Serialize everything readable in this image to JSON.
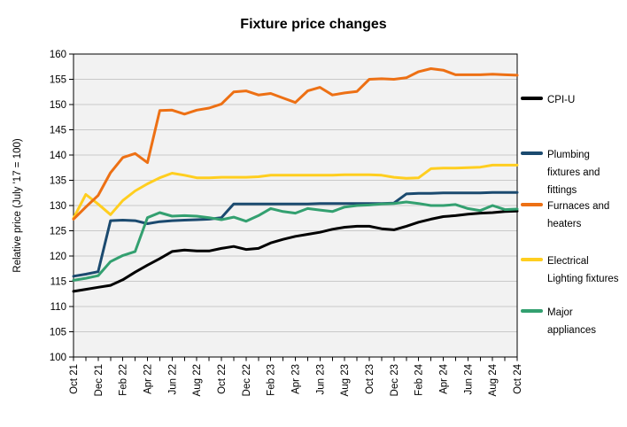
{
  "chart_data": {
    "type": "line",
    "title": "Fixture price changes",
    "ylabel": "Relative price (July '17 = 100)",
    "xlabel": "",
    "ylim": [
      100,
      160
    ],
    "y_ticks": [
      100,
      105,
      110,
      115,
      120,
      125,
      130,
      135,
      140,
      145,
      150,
      155,
      160
    ],
    "x_label_every": 2,
    "grid": true,
    "legend_position": "right",
    "plot_bg": "#F2F2F2",
    "grid_color": "#C9C9C9",
    "axis_color": "#000000",
    "months": [
      "Oct 21",
      "Nov 21",
      "Dec 21",
      "Jan 22",
      "Feb 22",
      "Mar 22",
      "Apr 22",
      "May 22",
      "Jun 22",
      "Jul 22",
      "Aug 22",
      "Sep 22",
      "Oct 22",
      "Nov 22",
      "Dec 22",
      "Jan 23",
      "Feb 23",
      "Mar 23",
      "Apr 23",
      "May 23",
      "Jun 23",
      "Jul 23",
      "Aug 23",
      "Sep 23",
      "Oct 23",
      "Nov 23",
      "Dec 23",
      "Jan 24",
      "Feb 24",
      "Mar 24",
      "Apr 24",
      "May 24",
      "Jun 24",
      "Jul 24",
      "Aug 24",
      "Sep 24",
      "Oct 24"
    ],
    "series": [
      {
        "name": "CPI-U",
        "color": "#000000",
        "values": [
          113.0,
          113.4,
          113.8,
          114.2,
          115.3,
          116.8,
          118.2,
          119.5,
          120.9,
          121.2,
          121.0,
          121.0,
          121.5,
          121.9,
          121.3,
          121.5,
          122.6,
          123.3,
          123.9,
          124.3,
          124.7,
          125.3,
          125.7,
          125.9,
          125.9,
          125.4,
          125.2,
          125.9,
          126.7,
          127.3,
          127.8,
          128.0,
          128.3,
          128.5,
          128.6,
          128.8,
          128.9
        ]
      },
      {
        "name": "Plumbing fixtures and fittings",
        "color": "#1B4A6F",
        "values": [
          116.0,
          116.4,
          116.9,
          127.0,
          127.1,
          127.0,
          126.4,
          126.8,
          127.0,
          127.1,
          127.2,
          127.3,
          127.6,
          130.3,
          130.3,
          130.3,
          130.3,
          130.3,
          130.3,
          130.3,
          130.4,
          130.4,
          130.4,
          130.4,
          130.4,
          130.4,
          130.5,
          132.3,
          132.4,
          132.4,
          132.5,
          132.5,
          132.5,
          132.5,
          132.6,
          132.6,
          132.6
        ]
      },
      {
        "name": "Furnaces and heaters",
        "color": "#ED7014",
        "values": [
          127.3,
          129.7,
          132.0,
          136.5,
          139.5,
          140.3,
          138.5,
          148.8,
          148.9,
          148.1,
          148.9,
          149.3,
          150.1,
          152.5,
          152.7,
          151.9,
          152.2,
          151.3,
          150.4,
          152.7,
          153.4,
          151.9,
          152.3,
          152.6,
          155.0,
          155.1,
          155.0,
          155.3,
          156.5,
          157.1,
          156.8,
          155.9,
          155.9,
          155.9,
          156.0,
          155.9,
          155.8
        ]
      },
      {
        "name": "Electrical Lighting fixtures",
        "color": "#FFCE1F",
        "values": [
          127.5,
          132.2,
          130.3,
          128.2,
          131.0,
          132.9,
          134.3,
          135.5,
          136.4,
          136.0,
          135.5,
          135.5,
          135.6,
          135.6,
          135.6,
          135.7,
          136.0,
          136.0,
          136.0,
          136.0,
          136.0,
          136.0,
          136.1,
          136.1,
          136.1,
          136.0,
          135.6,
          135.4,
          135.5,
          137.3,
          137.4,
          137.4,
          137.5,
          137.6,
          138.0,
          138.0,
          138.0
        ]
      },
      {
        "name": "Major appliances",
        "color": "#33A070",
        "values": [
          115.2,
          115.6,
          116.1,
          118.9,
          120.1,
          120.9,
          127.6,
          128.6,
          127.9,
          128.0,
          127.9,
          127.6,
          127.2,
          127.7,
          126.9,
          128.0,
          129.4,
          128.8,
          128.5,
          129.4,
          129.1,
          128.8,
          129.7,
          130.0,
          130.1,
          130.3,
          130.4,
          130.7,
          130.4,
          130.0,
          130.0,
          130.2,
          129.4,
          129.0,
          130.0,
          129.2,
          129.3
        ]
      }
    ]
  }
}
